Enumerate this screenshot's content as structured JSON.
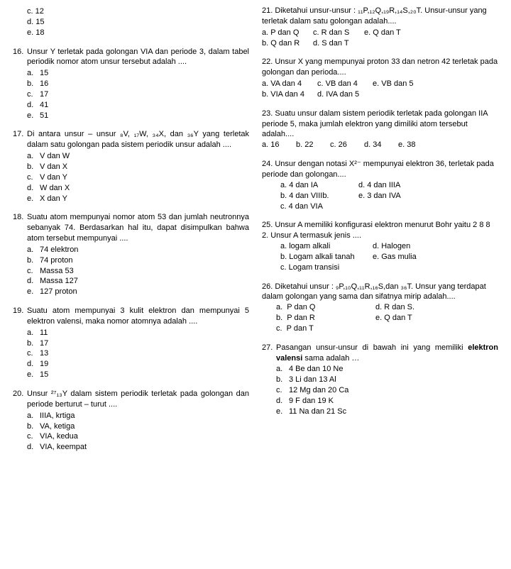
{
  "left": {
    "pre15": {
      "c": "c.   12",
      "d": "d.   15",
      "e": "e.   18"
    },
    "q16": {
      "num": "16.",
      "text": "Unsur Y terletak pada golongan VIA dan periode 3, dalam tabel periodik nomor atom unsur tersebut adalah ....",
      "a": "15",
      "b": "16",
      "c": "17",
      "d": "41",
      "e": "51"
    },
    "q17": {
      "num": "17.",
      "text": "Di antara unsur – unsur ₈V, ₁₇W, ₃₄X, dan ₃₆Y yang terletak dalam satu golongan pada sistem periodik unsur adalah ....",
      "a": "V dan W",
      "b": "V dan X",
      "c": "V dan Y",
      "d": "W dan X",
      "e": "X dan Y"
    },
    "q18": {
      "num": "18.",
      "text": "Suatu atom mempunyai nomor atom 53 dan jumlah neutronnya sebanyak 74. Berdasarkan hal itu, dapat disimpulkan bahwa atom tersebut mempunyai ....",
      "a": "74 elektron",
      "b": "74 proton",
      "c": "Massa 53",
      "d": "Massa 127",
      "e": "127 proton"
    },
    "q19": {
      "num": "19.",
      "text": "Suatu atom mempunyai 3 kulit elektron dan mempunyai 5 elektron valensi, maka nomor atomnya adalah ....",
      "a": "11",
      "b": "17",
      "c": "13",
      "d": "19",
      "e": "15"
    },
    "q20": {
      "num": "20.",
      "text": "Unsur ²⁷₁₃Y dalam sistem periodik terletak pada golongan dan periode berturut – turut ....",
      "a": "IIIA, krtiga",
      "b": "VA, ketiga",
      "c": "VIA, kedua",
      "d": "VIA, keempat"
    }
  },
  "right": {
    "q21": {
      "num": "21.",
      "text": "Diketahui unsur-unsur : ₁₁P,₁₂Q,₁₉R,₁₄S,₂₀T. Unsur-unsur yang terletak dalam satu golongan adalah....",
      "a": "a. P dan Q",
      "b": "b. Q dan R",
      "c": "c. R dan S",
      "d": "d. S dan T",
      "e": "e. Q dan T"
    },
    "q22": {
      "num": "22.",
      "text": "Unsur X yang mempunyai proton 33 dan netron 42 terletak pada golongan dan perioda....",
      "a": "a. VA dan 4",
      "b": "b. VIA dan 4",
      "c": "c. VB dan 4",
      "d": "d. IVA dan 5",
      "e": "e. VB dan 5"
    },
    "q23": {
      "num": "23.",
      "text": "Suatu unsur dalam sistem periodik terletak pada golongan IIA periode 5, maka jumlah elektron yang dimiliki atom tersebut adalah....",
      "a": "a. 16",
      "b": "b. 22",
      "c": "c. 26",
      "d": "d. 34",
      "e": "e. 38"
    },
    "q24": {
      "num": "24.",
      "text": "Unsur dengan notasi X²⁻ mempunyai elektron 36, terletak pada periode dan golongan....",
      "a": "a. 4 dan IA",
      "b": "b. 4 dan VIIIb.",
      "c": "c. 4 dan VIA",
      "d": "d. 4 dan IIIA",
      "e": "e.  3 dan IVA"
    },
    "q25": {
      "num": "25.",
      "text": "Unsur A memiliki konfigurasi elektron menurut Bohr yaitu 2 8 8 2. Unsur A termasuk jenis ....",
      "a": "a. logam alkali",
      "b": "b. Logam  alkali tanah",
      "c": "c. Logam transisi",
      "d": "d. Halogen",
      "e": "e. Gas mulia"
    },
    "q26": {
      "num": "26.",
      "text": "Diketahui unsur : ₉P,₁₀Q,₁₁R,₁₆S,dan ₃₆T. Unsur yang terdapat dalam golongan yang sama dan sifatnya mirip  adalah....",
      "a": "P dan Q",
      "b": "P dan R",
      "c": "P dan T",
      "d": "d. R dan S.",
      "e": "e. Q dan T"
    },
    "q27": {
      "num": "27.",
      "text": "Pasangan unsur-unsur di bawah ini yang memiliki elektron valensi sama adalah …",
      "text_html": "Pasangan unsur-unsur di bawah ini yang memiliki <b>elektron valensi</b> sama adalah …",
      "a": "4 Be dan 10 Ne",
      "b": "3 Li dan 13 Al",
      "c": "12 Mg dan 20 Ca",
      "d": "9 F dan 19 K",
      "e": "11 Na dan 21 Sc"
    }
  }
}
